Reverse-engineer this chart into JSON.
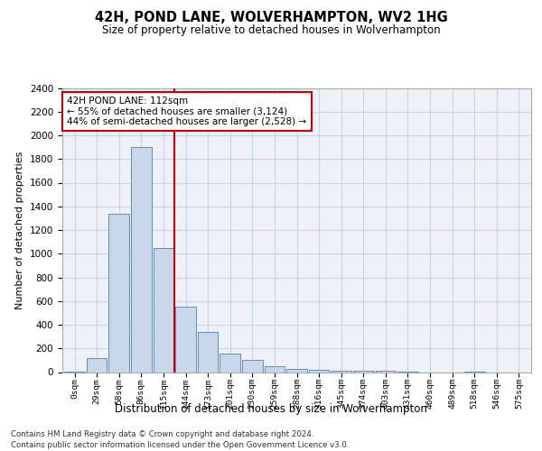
{
  "title": "42H, POND LANE, WOLVERHAMPTON, WV2 1HG",
  "subtitle": "Size of property relative to detached houses in Wolverhampton",
  "xlabel": "Distribution of detached houses by size in Wolverhampton",
  "ylabel": "Number of detached properties",
  "categories": [
    "0sqm",
    "29sqm",
    "58sqm",
    "86sqm",
    "115sqm",
    "144sqm",
    "173sqm",
    "201sqm",
    "230sqm",
    "259sqm",
    "288sqm",
    "316sqm",
    "345sqm",
    "374sqm",
    "403sqm",
    "431sqm",
    "460sqm",
    "489sqm",
    "518sqm",
    "546sqm",
    "575sqm"
  ],
  "values": [
    5,
    120,
    1340,
    1900,
    1050,
    550,
    340,
    160,
    100,
    50,
    30,
    20,
    15,
    10,
    10,
    5,
    0,
    0,
    5,
    0,
    0
  ],
  "bar_color": "#c8d8ea",
  "bar_edge_color": "#6090b8",
  "grid_color": "#c8d4e4",
  "background_color": "#eef2f8",
  "property_line_x": 4.5,
  "annotation_text": "42H POND LANE: 112sqm\n← 55% of detached houses are smaller (3,124)\n44% of semi-detached houses are larger (2,528) →",
  "annotation_box_color": "#ffffff",
  "annotation_box_edge": "#cc0000",
  "property_line_color": "#cc0000",
  "ylim": [
    0,
    2400
  ],
  "yticks": [
    0,
    200,
    400,
    600,
    800,
    1000,
    1200,
    1400,
    1600,
    1800,
    2000,
    2200,
    2400
  ],
  "footnote1": "Contains HM Land Registry data © Crown copyright and database right 2024.",
  "footnote2": "Contains public sector information licensed under the Open Government Licence v3.0."
}
